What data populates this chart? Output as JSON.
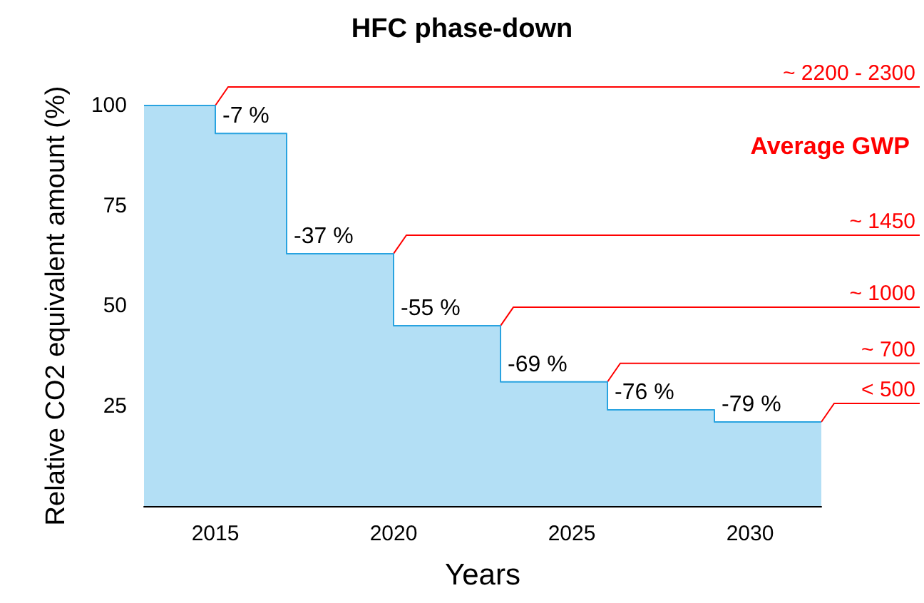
{
  "chart_data": {
    "type": "area",
    "title": "HFC phase-down",
    "xlabel": "Years",
    "ylabel": "Relative CO2 equivalent amount (%)",
    "x": [
      2013,
      2015,
      2015,
      2017,
      2017,
      2020,
      2020,
      2023,
      2023,
      2026,
      2026,
      2029,
      2029,
      2032
    ],
    "series": [
      {
        "color": "#29a3e0",
        "values": [
          100,
          100,
          93,
          93,
          63,
          63,
          45,
          45,
          31,
          31,
          24,
          24,
          21,
          21
        ]
      }
    ],
    "xlim": [
      2013,
      2032
    ],
    "xticks": [
      2015,
      2020,
      2025,
      2030
    ],
    "ylim": [
      0,
      100
    ],
    "yticks": [
      25,
      50,
      75,
      100
    ],
    "grid": false,
    "marker": "none",
    "annotations": [
      {
        "text": "-7 %",
        "x": 2015,
        "y": 93
      },
      {
        "text": "-37 %",
        "x": 2017,
        "y": 63
      },
      {
        "text": "-55 %",
        "x": 2020,
        "y": 45
      },
      {
        "text": "-69 %",
        "x": 2023,
        "y": 31
      },
      {
        "text": "-76 %",
        "x": 2026,
        "y": 24
      },
      {
        "text": "-79 %",
        "x": 2029,
        "y": 21
      },
      "Average GWP",
      {
        "text": "~ 2200 - 2300",
        "x": 2015,
        "y": 100
      },
      {
        "text": "~ 1450",
        "x": 2020,
        "y": 63
      },
      {
        "text": "~ 1000",
        "x": 2023,
        "y": 45
      },
      {
        "text": "~ 700",
        "x": 2026,
        "y": 31
      },
      {
        "text": "< 500",
        "x": 2032,
        "y": 21
      }
    ]
  }
}
